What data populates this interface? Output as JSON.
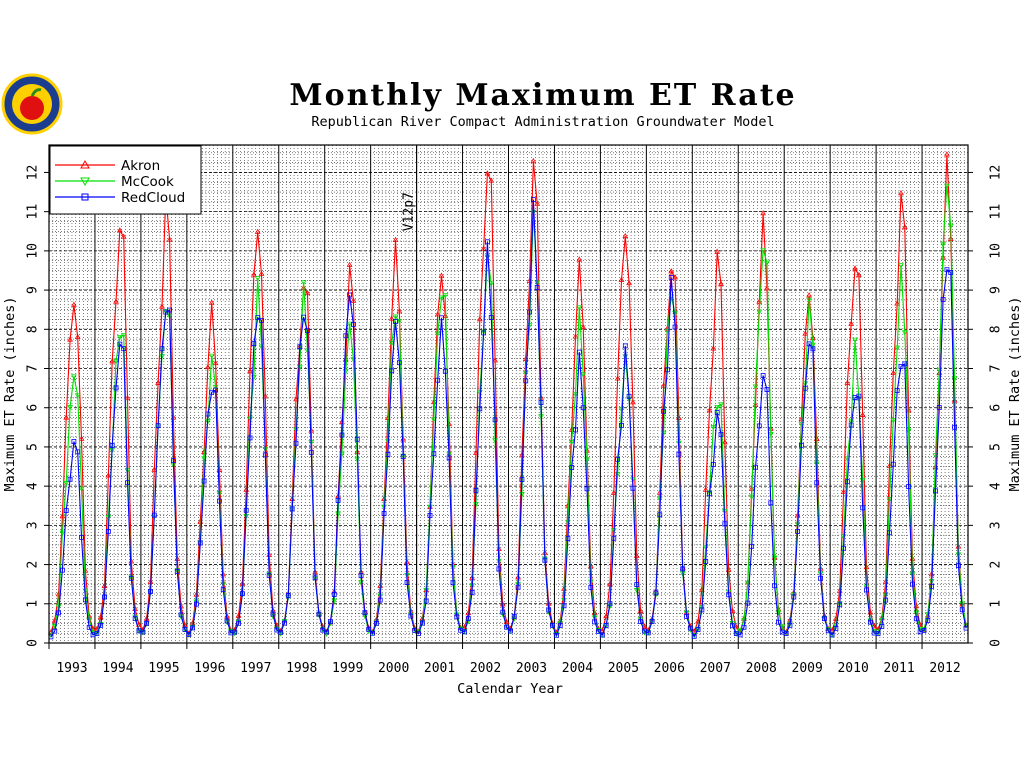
{
  "chart_data": {
    "type": "line",
    "title": "Monthly Maximum ET Rate",
    "subtitle": "Republican River Compact Administration Groundwater Model",
    "xlabel": "Calendar Year",
    "ylabel": "Maximum ET Rate (inches)",
    "ylabel_right": "Maximum ET Rate (inches)",
    "ylim": [
      0,
      12.7
    ],
    "yticks": [
      "0",
      "1",
      "2",
      "3",
      "4",
      "5",
      "6",
      "7",
      "8",
      "9",
      "10",
      "11",
      "12"
    ],
    "xlim": [
      1993.0,
      2013.0
    ],
    "x_tick_labels": [
      "1993",
      "1994",
      "1995",
      "1996",
      "1997",
      "1998",
      "1999",
      "2000",
      "2001",
      "2002",
      "2003",
      "2004",
      "2005",
      "2006",
      "2007",
      "2008",
      "2009",
      "2010",
      "2011",
      "2012"
    ],
    "grid": true,
    "legend_position": "top-left",
    "annotation": {
      "text": "V12p7",
      "x": 2001.0
    },
    "colors": {
      "Akron": "#ff0000",
      "McCook": "#00e000",
      "RedCloud": "#0000ff"
    },
    "series": [
      {
        "name": "Akron",
        "marker": "triangle-up",
        "peaks": [
          9.0,
          11.0,
          11.0,
          8.3,
          10.9,
          9.5,
          9.3,
          9.8,
          9.7,
          12.6,
          11.9,
          9.3,
          10.7,
          10.0,
          9.7,
          10.4,
          9.1,
          10.1,
          11.2,
          11.8
        ]
      },
      {
        "name": "McCook",
        "marker": "triangle-down",
        "peaks": [
          7.0,
          8.3,
          8.8,
          7.2,
          8.8,
          8.8,
          8.2,
          8.8,
          9.3,
          9.9,
          10.5,
          8.1,
          7.2,
          9.2,
          6.4,
          10.3,
          8.5,
          7.3,
          9.3,
          11.9
        ]
      },
      {
        "name": "RedCloud",
        "marker": "square",
        "peaks": [
          5.2,
          7.9,
          8.9,
          6.8,
          8.8,
          8.7,
          9.1,
          8.2,
          8.1,
          9.8,
          10.7,
          7.0,
          7.2,
          9.0,
          5.8,
          6.9,
          7.9,
          6.6,
          7.5,
          10.1
        ]
      }
    ]
  }
}
